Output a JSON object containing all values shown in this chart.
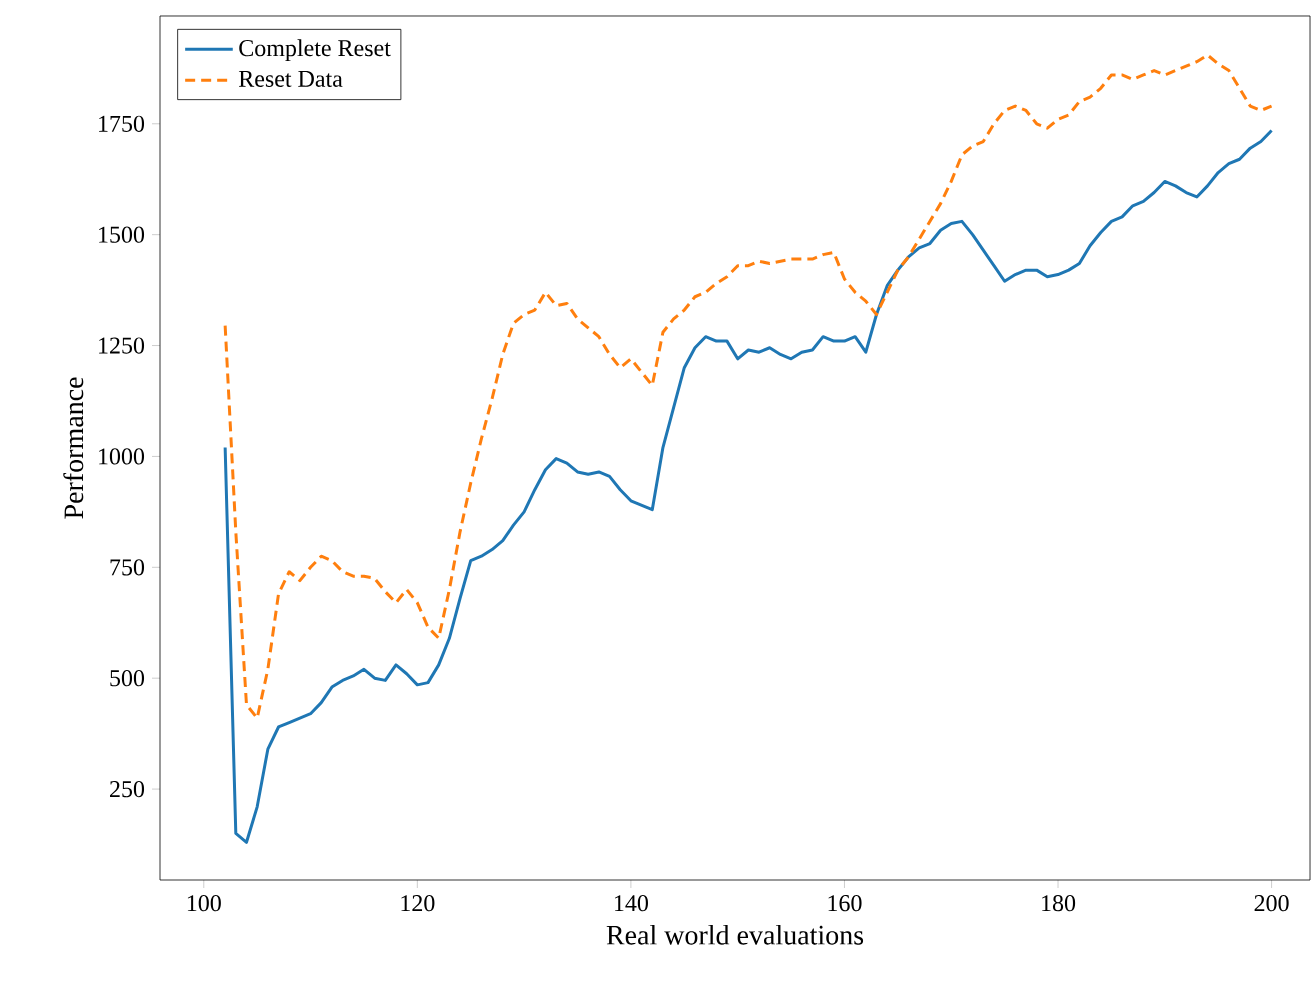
{
  "chart_data": {
    "type": "line",
    "xlabel": "Real world evaluations",
    "ylabel": "Performance",
    "x": [
      102,
      103,
      104,
      105,
      106,
      107,
      108,
      109,
      110,
      111,
      112,
      113,
      114,
      115,
      116,
      117,
      118,
      119,
      120,
      121,
      122,
      123,
      124,
      125,
      126,
      127,
      128,
      129,
      130,
      131,
      132,
      133,
      134,
      135,
      136,
      137,
      138,
      139,
      140,
      141,
      142,
      143,
      144,
      145,
      146,
      147,
      148,
      149,
      150,
      151,
      152,
      153,
      154,
      155,
      156,
      157,
      158,
      159,
      160,
      161,
      162,
      163,
      164,
      165,
      166,
      167,
      168,
      169,
      170,
      171,
      172,
      173,
      174,
      175,
      176,
      177,
      178,
      179,
      180,
      181,
      182,
      183,
      184,
      185,
      186,
      187,
      188,
      189,
      190,
      191,
      192,
      193,
      194,
      195,
      196,
      197,
      198,
      199,
      200
    ],
    "series": [
      {
        "name": "Complete Reset",
        "color": "#1f77b4",
        "line_style": "solid",
        "values": [
          1020,
          150,
          130,
          210,
          340,
          390,
          400,
          410,
          420,
          445,
          480,
          495,
          505,
          520,
          500,
          495,
          530,
          510,
          485,
          490,
          530,
          590,
          680,
          765,
          775,
          790,
          810,
          845,
          875,
          925,
          970,
          995,
          985,
          965,
          960,
          965,
          955,
          925,
          900,
          890,
          880,
          1020,
          1110,
          1200,
          1245,
          1270,
          1260,
          1260,
          1220,
          1240,
          1235,
          1245,
          1230,
          1220,
          1235,
          1240,
          1270,
          1260,
          1260,
          1270,
          1235,
          1320,
          1385,
          1420,
          1450,
          1470,
          1480,
          1510,
          1525,
          1530,
          1500,
          1465,
          1430,
          1395,
          1410,
          1420,
          1420,
          1405,
          1410,
          1420,
          1435,
          1475,
          1505,
          1530,
          1540,
          1565,
          1575,
          1595,
          1620,
          1610,
          1595,
          1585,
          1610,
          1640,
          1660,
          1670,
          1695,
          1710,
          1735
        ]
      },
      {
        "name": "Reset Data",
        "color": "#ff7f0e",
        "line_style": "dashed",
        "values": [
          1295,
          830,
          440,
          410,
          520,
          690,
          740,
          720,
          750,
          775,
          765,
          740,
          730,
          730,
          725,
          695,
          670,
          700,
          670,
          615,
          590,
          700,
          830,
          940,
          1040,
          1130,
          1230,
          1300,
          1320,
          1330,
          1370,
          1340,
          1345,
          1310,
          1290,
          1270,
          1230,
          1200,
          1220,
          1190,
          1160,
          1280,
          1310,
          1330,
          1360,
          1370,
          1390,
          1405,
          1430,
          1430,
          1440,
          1435,
          1440,
          1445,
          1445,
          1445,
          1455,
          1460,
          1400,
          1370,
          1350,
          1320,
          1370,
          1420,
          1450,
          1490,
          1530,
          1570,
          1620,
          1680,
          1700,
          1710,
          1750,
          1780,
          1790,
          1780,
          1750,
          1740,
          1760,
          1770,
          1800,
          1810,
          1830,
          1860,
          1860,
          1850,
          1860,
          1870,
          1860,
          1870,
          1880,
          1890,
          1905,
          1885,
          1870,
          1830,
          1790,
          1780,
          1790
        ]
      }
    ],
    "xlim": [
      95.9,
      203.6
    ],
    "ylim": [
      45,
      1993
    ],
    "xticks": [
      100,
      120,
      140,
      160,
      180,
      200
    ],
    "yticks": [
      250,
      500,
      750,
      1000,
      1250,
      1500,
      1750
    ],
    "legend": "top left",
    "grid": false
  }
}
